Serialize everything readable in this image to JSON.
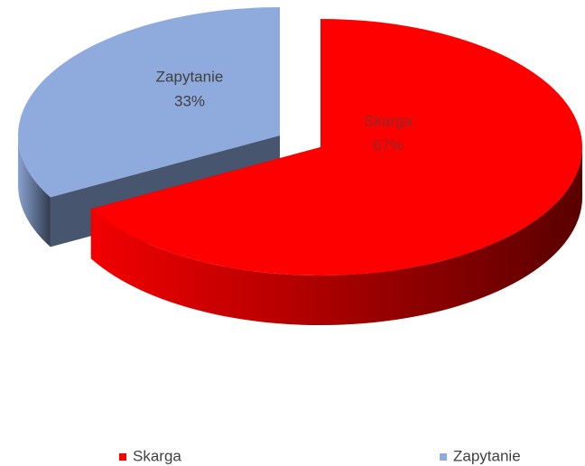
{
  "chart_data": {
    "type": "pie",
    "categories": [
      "Skarga",
      "Zapytanie"
    ],
    "values": [
      67,
      33
    ],
    "value_labels": [
      "67%",
      "33%"
    ],
    "colors": [
      "#ff0000",
      "#8faadc"
    ],
    "legend": "bottom"
  }
}
